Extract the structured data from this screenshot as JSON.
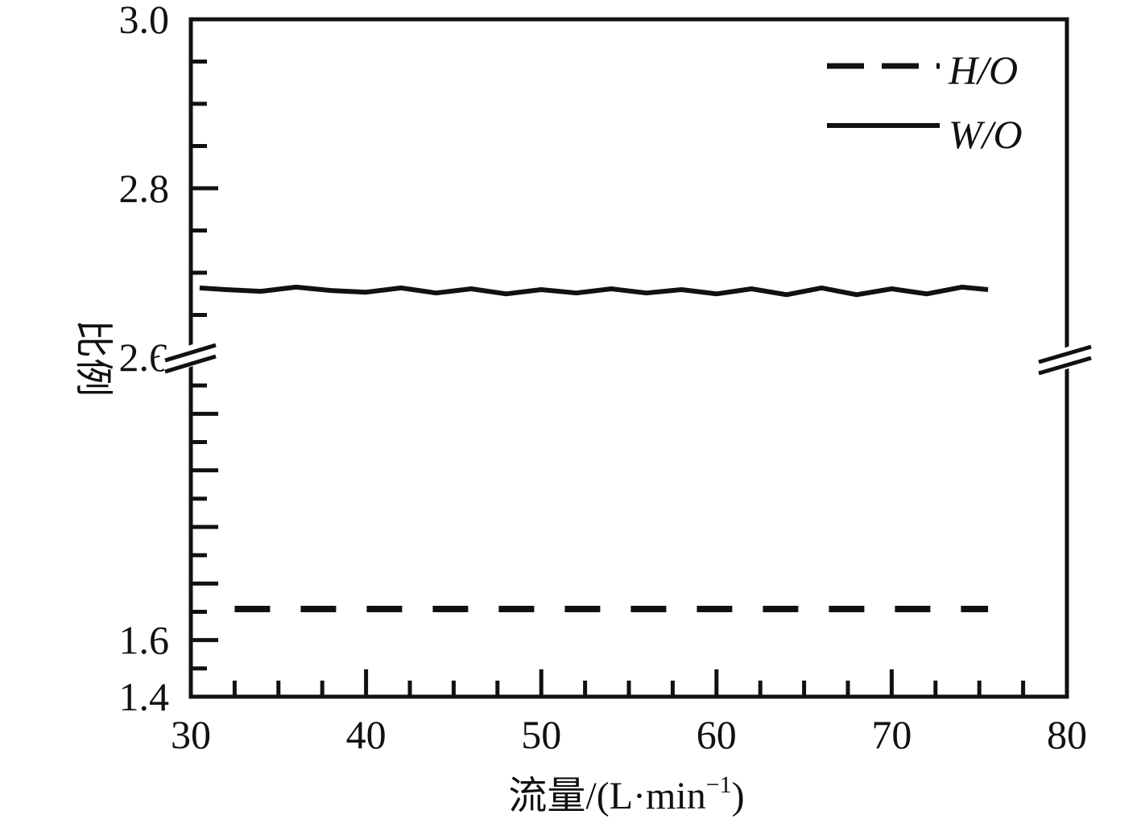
{
  "chart_data": {
    "type": "line",
    "title": "",
    "xlabel": "流量/(L·min",
    "xlabel_sup": "−1",
    "xlabel_close": ")",
    "ylabel": "比例",
    "xlim": [
      30,
      80
    ],
    "x_ticks": [
      30,
      40,
      50,
      60,
      70,
      80
    ],
    "x_tick_labels": [
      "30",
      "40",
      "50",
      "60",
      "70",
      "80"
    ],
    "y_broken_axis": true,
    "y_break_at": "2.6",
    "y_lower_segment": [
      1.4,
      2.6
    ],
    "y_upper_segment": [
      2.6,
      3.0
    ],
    "y_tick_labels": [
      "1.4",
      "1.6",
      "2.6",
      "2.8",
      "3.0"
    ],
    "y_ticks_lower": [
      1.4,
      1.6
    ],
    "y_ticks_upper": [
      2.6,
      2.8,
      3.0
    ],
    "grid": false,
    "legend_position": "top-right",
    "series": [
      {
        "name": "H/O",
        "style": "dashed",
        "color": "#111111",
        "x": [
          32.5,
          75.5
        ],
        "y": [
          1.71,
          1.71
        ]
      },
      {
        "name": "W/O",
        "style": "solid",
        "color": "#111111",
        "x": [
          30.5,
          32,
          34,
          36,
          38,
          40,
          42,
          44,
          46,
          48,
          50,
          52,
          54,
          56,
          58,
          60,
          62,
          64,
          66,
          68,
          70,
          72,
          74,
          75.5
        ],
        "y": [
          2.682,
          2.68,
          2.678,
          2.683,
          2.679,
          2.677,
          2.682,
          2.676,
          2.681,
          2.675,
          2.68,
          2.676,
          2.681,
          2.676,
          2.68,
          2.675,
          2.681,
          2.674,
          2.682,
          2.674,
          2.681,
          2.675,
          2.683,
          2.68
        ]
      }
    ]
  }
}
